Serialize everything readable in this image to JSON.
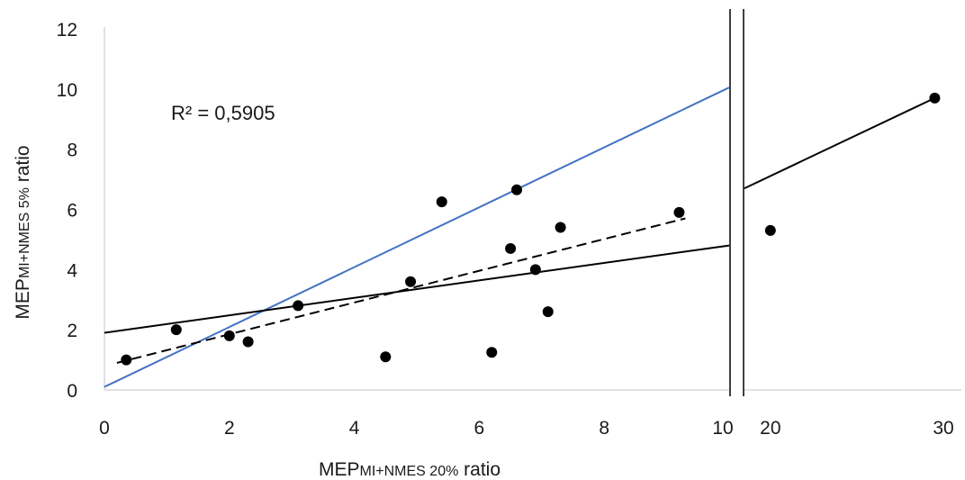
{
  "chart_data": {
    "type": "scatter",
    "xlabel": {
      "main": "MEP",
      "sub": "MI+NMES 20%",
      "suffix": " ratio"
    },
    "ylabel": {
      "main": "MEP",
      "sub": "MI+NMES 5%",
      "suffix": " ratio"
    },
    "annotation": "R² = 0,5905",
    "grid": false,
    "x_axis": {
      "broken": true,
      "segment_left": {
        "xlim": [
          0,
          10
        ],
        "ticks": [
          "0",
          "2",
          "4",
          "6",
          "8",
          "10"
        ]
      },
      "segment_right": {
        "xlim": [
          18.5,
          30
        ],
        "ticks": [
          "20",
          "30"
        ]
      }
    },
    "ylim": [
      0,
      12
    ],
    "yticks": [
      "0",
      "2",
      "4",
      "6",
      "8",
      "10",
      "12"
    ],
    "points": [
      {
        "x": 0.35,
        "y": 1.0
      },
      {
        "x": 1.15,
        "y": 2.0
      },
      {
        "x": 2.0,
        "y": 1.8
      },
      {
        "x": 2.3,
        "y": 1.6
      },
      {
        "x": 3.1,
        "y": 2.8
      },
      {
        "x": 4.5,
        "y": 1.1
      },
      {
        "x": 4.9,
        "y": 3.6
      },
      {
        "x": 5.4,
        "y": 6.25
      },
      {
        "x": 6.2,
        "y": 1.25
      },
      {
        "x": 6.5,
        "y": 4.7
      },
      {
        "x": 6.6,
        "y": 6.65
      },
      {
        "x": 6.9,
        "y": 4.0
      },
      {
        "x": 7.1,
        "y": 2.6
      },
      {
        "x": 7.3,
        "y": 5.4
      },
      {
        "x": 9.2,
        "y": 5.9
      },
      {
        "x": 20.0,
        "y": 5.3
      },
      {
        "x": 29.5,
        "y": 9.7
      }
    ],
    "lines": [
      {
        "style": "solid",
        "color": "#4472c4",
        "points": [
          [
            0,
            0.1
          ],
          [
            10,
            10.05
          ]
        ]
      },
      {
        "style": "solid",
        "color": "#000000",
        "points": [
          [
            0,
            1.9
          ],
          [
            10,
            4.8
          ]
        ]
      },
      {
        "style": "solid",
        "color": "#000000",
        "points": [
          [
            18.5,
            6.7
          ],
          [
            29.5,
            9.7
          ]
        ]
      },
      {
        "style": "dashed",
        "color": "#000000",
        "points": [
          [
            0.2,
            0.9
          ],
          [
            9.3,
            5.7
          ]
        ]
      }
    ]
  }
}
